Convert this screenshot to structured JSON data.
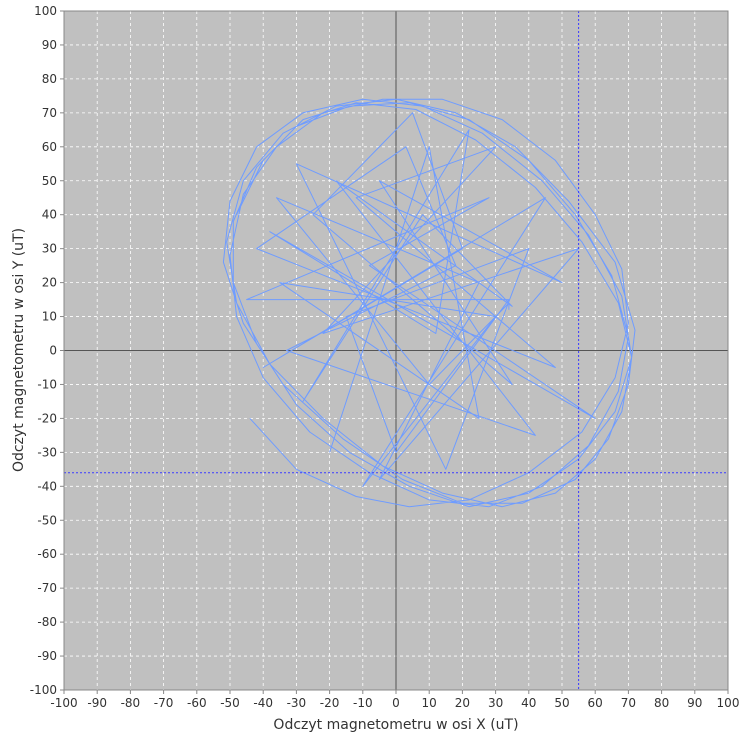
{
  "chart_data": {
    "type": "line",
    "title": "",
    "xlabel": "Odczyt magnetometru w osi X (uT)",
    "ylabel": "Odczyt magnetometru w osi Y (uT)",
    "xlim": [
      -100,
      100
    ],
    "ylim": [
      -100,
      100
    ],
    "x_ticks": [
      "-100",
      "-90",
      "-80",
      "-70",
      "-60",
      "-50",
      "-40",
      "-30",
      "-20",
      "-10",
      "0",
      "10",
      "20",
      "30",
      "40",
      "50",
      "60",
      "70",
      "80",
      "90",
      "100"
    ],
    "y_ticks": [
      "100",
      "90",
      "80",
      "70",
      "60",
      "50",
      "40",
      "30",
      "20",
      "10",
      "0",
      "-10",
      "-20",
      "-30",
      "-40",
      "-50",
      "-60",
      "-70",
      "-80",
      "-90",
      "-100"
    ],
    "grid": true,
    "legend": "none",
    "crosshair": {
      "x": 55,
      "y": -36
    },
    "colors": {
      "plot_background": "#c0c0c0",
      "series": "#6f9cff",
      "grid": "#ffffff",
      "zero_axes": "#555555",
      "crosshair": "#3a3aff"
    },
    "series": [
      {
        "x": [
          -44,
          -30,
          -12,
          4,
          22,
          40,
          56,
          66,
          70,
          68,
          60,
          48,
          32,
          14,
          -4,
          -22,
          -36,
          -46,
          -50,
          -48,
          -40,
          -26,
          -8,
          10,
          28,
          44,
          58,
          67,
          70,
          65,
          54,
          40,
          22,
          4,
          -14,
          -30,
          -42,
          -49,
          -49,
          -42,
          -30,
          -14,
          4,
          22,
          40,
          55,
          66,
          71,
          68,
          58,
          44,
          26,
          8,
          -10,
          -28,
          -42,
          -50,
          -52,
          -46,
          -34,
          -16,
          2,
          20,
          38,
          54,
          64,
          70,
          72,
          66,
          52,
          36,
          18,
          0,
          -18,
          -34,
          -46,
          -51,
          -48,
          -38,
          -22,
          -4,
          14,
          32,
          48,
          60,
          68,
          71,
          67,
          56,
          42,
          24,
          6,
          -12,
          -28,
          -40,
          -48
        ],
        "y": [
          -20,
          -35,
          -43,
          -46,
          -44,
          -36,
          -24,
          -8,
          8,
          24,
          40,
          56,
          68,
          74,
          74,
          70,
          60,
          46,
          28,
          10,
          -8,
          -24,
          -36,
          -44,
          -46,
          -40,
          -28,
          -12,
          4,
          22,
          40,
          56,
          68,
          73,
          72,
          66,
          54,
          38,
          20,
          2,
          -16,
          -30,
          -40,
          -46,
          -42,
          -32,
          -18,
          -2,
          16,
          34,
          50,
          64,
          72,
          74,
          70,
          60,
          44,
          26,
          8,
          -10,
          -26,
          -38,
          -45,
          -45,
          -38,
          -26,
          -10,
          6,
          26,
          44,
          60,
          70,
          74,
          72,
          64,
          50,
          32,
          14,
          -4,
          -20,
          -34,
          -42,
          -46,
          -42,
          -32,
          -18,
          -2,
          14,
          32,
          48,
          62,
          71,
          73,
          68,
          56,
          40
        ]
      },
      {
        "x": [
          -20,
          10,
          25,
          -35,
          30,
          -10,
          45,
          -40,
          20,
          5,
          -25,
          35,
          -5,
          50,
          -30,
          15,
          40,
          -15,
          0,
          34,
          -45,
          28,
          -8,
          60,
          -38,
          12,
          22,
          -28,
          8,
          35,
          -18,
          42,
          -33,
          18,
          3,
          -42,
          48,
          -12,
          30,
          -22,
          55,
          -5,
          25,
          -36,
          10,
          34,
          34
        ],
        "y": [
          -30,
          60,
          -20,
          20,
          10,
          -40,
          45,
          -5,
          30,
          70,
          40,
          -10,
          50,
          20,
          55,
          -35,
          30,
          10,
          -30,
          15,
          15,
          45,
          25,
          -20,
          35,
          5,
          65,
          -15,
          40,
          13,
          50,
          -25,
          0,
          25,
          60,
          30,
          -5,
          45,
          60,
          5,
          30,
          -38,
          20,
          45,
          -10,
          14,
          12
        ]
      }
    ]
  }
}
